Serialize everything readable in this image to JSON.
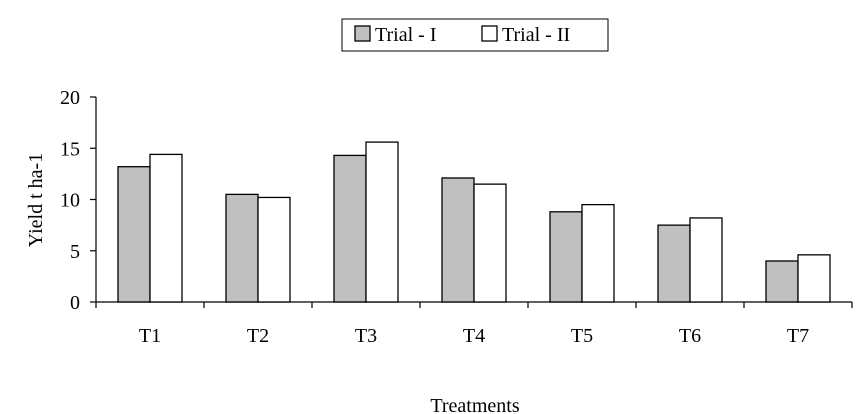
{
  "chart_data": {
    "type": "bar",
    "title": "",
    "xlabel": "Treatments",
    "ylabel": "Yield t ha-1",
    "categories": [
      "T1",
      "T2",
      "T3",
      "T4",
      "T5",
      "T6",
      "T7"
    ],
    "series": [
      {
        "name": "Trial - I",
        "values": [
          13.2,
          10.5,
          14.3,
          12.1,
          8.8,
          7.5,
          4.0
        ],
        "color": "#c0c0c0"
      },
      {
        "name": "Trial - II",
        "values": [
          14.4,
          10.2,
          15.6,
          11.5,
          9.5,
          8.2,
          4.6
        ],
        "color": "#ffffff"
      }
    ],
    "ylim": [
      0,
      20
    ],
    "yticks": [
      "0",
      "5",
      "10",
      "15",
      "20"
    ],
    "grid": false,
    "legend": "top"
  }
}
